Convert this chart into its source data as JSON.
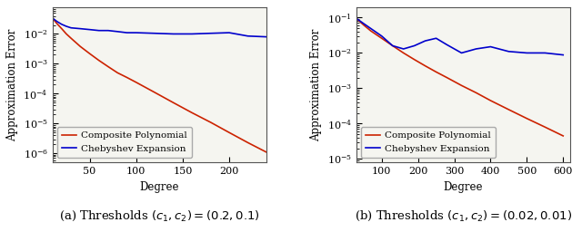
{
  "fig_width": 6.4,
  "fig_height": 2.56,
  "dpi": 100,
  "plot1": {
    "title": "(a) Thresholds $(c_1, c_2) = (0.2, 0.1)$",
    "xlabel": "Degree",
    "ylabel": "Approximation Error",
    "xlim": [
      10,
      240
    ],
    "ylim": [
      5e-07,
      0.08
    ],
    "xticks": [
      50,
      100,
      150,
      200
    ],
    "yticks": [
      1e-06,
      0.0001,
      0.01
    ],
    "composite_x": [
      10,
      15,
      20,
      25,
      30,
      40,
      50,
      60,
      70,
      80,
      90,
      100,
      120,
      140,
      160,
      180,
      200,
      220,
      240
    ],
    "composite_y": [
      0.034,
      0.022,
      0.015,
      0.01,
      0.0072,
      0.0038,
      0.0022,
      0.0013,
      0.0008,
      0.0005,
      0.00035,
      0.00024,
      0.00011,
      5e-05,
      2.3e-05,
      1.1e-05,
      5e-06,
      2.3e-06,
      1.1e-06
    ],
    "cheby_x": [
      10,
      15,
      20,
      25,
      30,
      40,
      50,
      60,
      70,
      80,
      90,
      100,
      120,
      140,
      160,
      180,
      200,
      220,
      240
    ],
    "cheby_y": [
      0.034,
      0.026,
      0.021,
      0.018,
      0.016,
      0.015,
      0.014,
      0.013,
      0.013,
      0.012,
      0.011,
      0.011,
      0.0105,
      0.01,
      0.01,
      0.0105,
      0.011,
      0.0085,
      0.008
    ]
  },
  "plot2": {
    "title": "(b) Thresholds $(c_1, c_2) = (0.02, 0.01)$",
    "xlabel": "Degree",
    "ylabel": "Approximation Error",
    "xlim": [
      30,
      620
    ],
    "ylim": [
      8e-06,
      0.2
    ],
    "xticks": [
      100,
      200,
      300,
      400,
      500,
      600
    ],
    "yticks": [
      1e-05,
      0.0001,
      0.001,
      0.01,
      0.1
    ],
    "composite_x": [
      30,
      50,
      70,
      100,
      130,
      160,
      190,
      220,
      250,
      280,
      320,
      360,
      400,
      450,
      500,
      550,
      600
    ],
    "composite_y": [
      0.095,
      0.062,
      0.042,
      0.026,
      0.016,
      0.01,
      0.0065,
      0.0043,
      0.0029,
      0.002,
      0.0012,
      0.00075,
      0.00045,
      0.00025,
      0.00014,
      8e-05,
      4.5e-05
    ],
    "cheby_x": [
      30,
      50,
      70,
      100,
      130,
      160,
      190,
      220,
      250,
      280,
      320,
      360,
      400,
      450,
      500,
      550,
      600
    ],
    "cheby_y": [
      0.095,
      0.068,
      0.049,
      0.03,
      0.016,
      0.013,
      0.016,
      0.022,
      0.026,
      0.017,
      0.01,
      0.013,
      0.015,
      0.011,
      0.01,
      0.01,
      0.0088
    ]
  },
  "composite_color": "#cc2200",
  "cheby_color": "#0000cc",
  "line_width": 1.2,
  "legend_label_composite": "Composite Polynomial",
  "legend_label_cheby": "Chebyshev Expansion",
  "legend_fontsize": 7.5,
  "axis_label_fontsize": 8.5,
  "tick_fontsize": 8,
  "caption_fontsize": 9.5,
  "bg_color": "#f5f5f0"
}
